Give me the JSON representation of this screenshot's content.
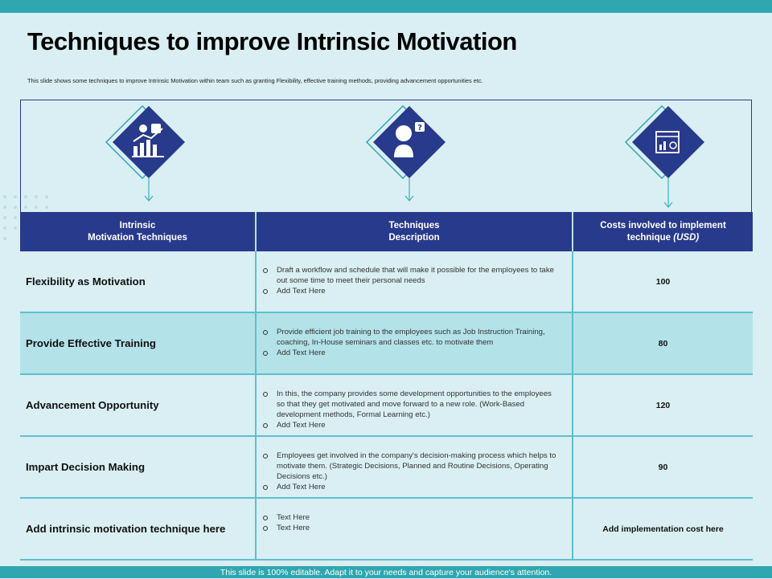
{
  "title": "Techniques to improve Intrinsic Motivation",
  "subtitle": "This slide shows some techniques to improve Intrinsic Motivation within team such as granting Flexibility, effective training methods, providing advancement opportunities etc.",
  "icons": [
    {
      "name": "growth-chart-icon"
    },
    {
      "name": "person-question-icon"
    },
    {
      "name": "dashboard-icon"
    }
  ],
  "table": {
    "headers": [
      {
        "line1": "Intrinsic",
        "line2": "Motivation Techniques"
      },
      {
        "line1": "Techniques",
        "line2": "Description"
      },
      {
        "line1": "Costs involved to implement",
        "line2": "technique",
        "line2_italic": "(USD)"
      }
    ],
    "rows": [
      {
        "name": "Flexibility as Motivation",
        "bullets": [
          "Draft a workflow and schedule that will make it possible for the employees to take out some time to meet their personal needs",
          "Add Text Here"
        ],
        "cost": "100"
      },
      {
        "name": "Provide Effective Training",
        "bullets": [
          "Provide efficient job training to the employees such as Job Instruction Training, coaching, In-House seminars and classes etc. to motivate them",
          "Add Text Here"
        ],
        "cost": "80"
      },
      {
        "name": "Advancement Opportunity",
        "bullets": [
          "In this, the company provides some development opportunities to the employees so that they get motivated and move forward to a new role. (Work-Based development methods, Formal Learning etc.)",
          "Add Text Here"
        ],
        "cost": "120"
      },
      {
        "name": "Impart Decision Making",
        "bullets": [
          "Employees get involved in the company's decision-making process which helps to motivate them. (Strategic Decisions, Planned and Routine Decisions, Operating Decisions etc.)",
          "Add Text Here"
        ],
        "cost": "90"
      },
      {
        "name": "Add intrinsic motivation technique here",
        "bullets": [
          "Text Here",
          "Text Here"
        ],
        "cost": "Add implementation cost here"
      }
    ]
  },
  "footer": "This slide is 100% editable. Adapt it to your needs and capture your audience's attention.",
  "colors": {
    "navy": "#283a8c",
    "teal": "#2fa6b0",
    "background": "#d9eff3",
    "alt_row": "#b3e2e8"
  }
}
